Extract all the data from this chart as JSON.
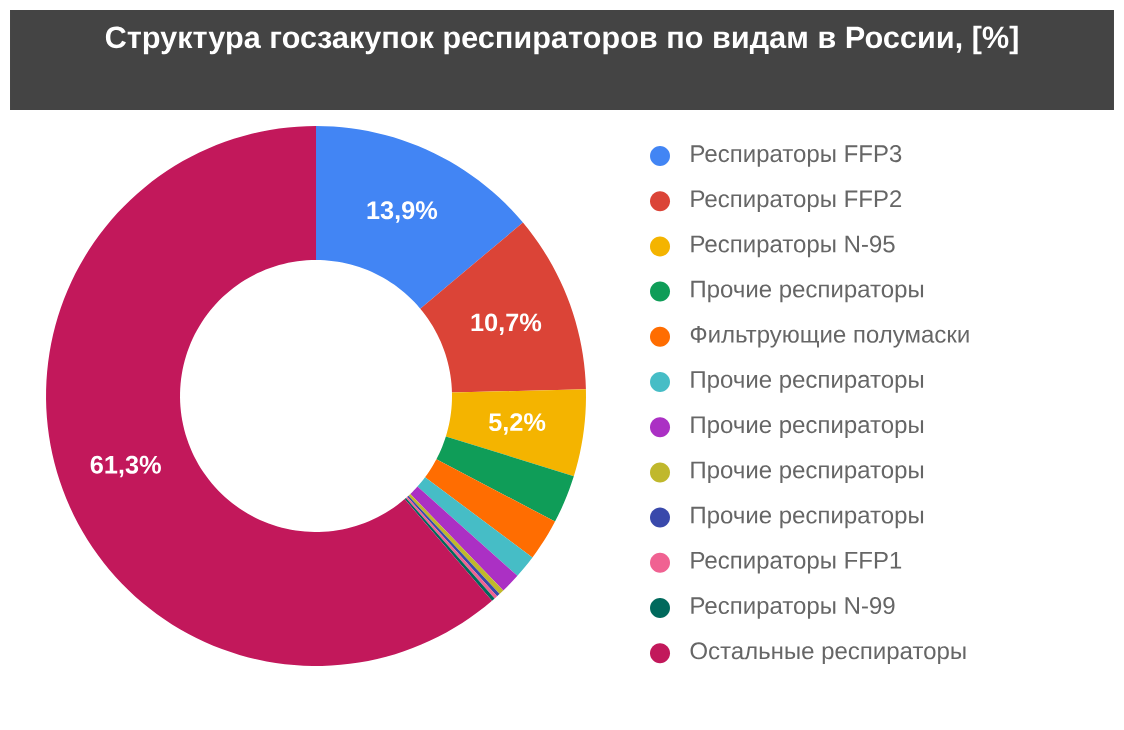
{
  "chart_data": {
    "type": "donut",
    "title": "Структура госзакупок респираторов по видам в России, [%]",
    "categories": [
      "Респираторы FFP3",
      "Респираторы FFP2",
      "Респираторы N-95",
      "Прочие респираторы",
      "Фильтрующие полумаски",
      "Прочие респираторы",
      "Прочие респираторы",
      "Прочие респираторы",
      "Прочие респираторы",
      "Респираторы FFP1",
      "Респираторы N-99",
      "Остальные респираторы"
    ],
    "values": [
      13.9,
      10.7,
      5.2,
      2.9,
      2.5,
      1.4,
      1.2,
      0.3,
      0.2,
      0.2,
      0.2,
      61.3
    ],
    "value_labels": [
      "13,9%",
      "10,7%",
      "5,2%",
      null,
      null,
      null,
      null,
      null,
      null,
      null,
      null,
      "61,3%"
    ],
    "colors": [
      "#4285f4",
      "#db4437",
      "#f4b400",
      "#0f9d58",
      "#ff6d01",
      "#46bdc6",
      "#ab30c4",
      "#c0b82c",
      "#3949ab",
      "#f06292",
      "#00695c",
      "#c2185b"
    ],
    "legend": "right"
  }
}
